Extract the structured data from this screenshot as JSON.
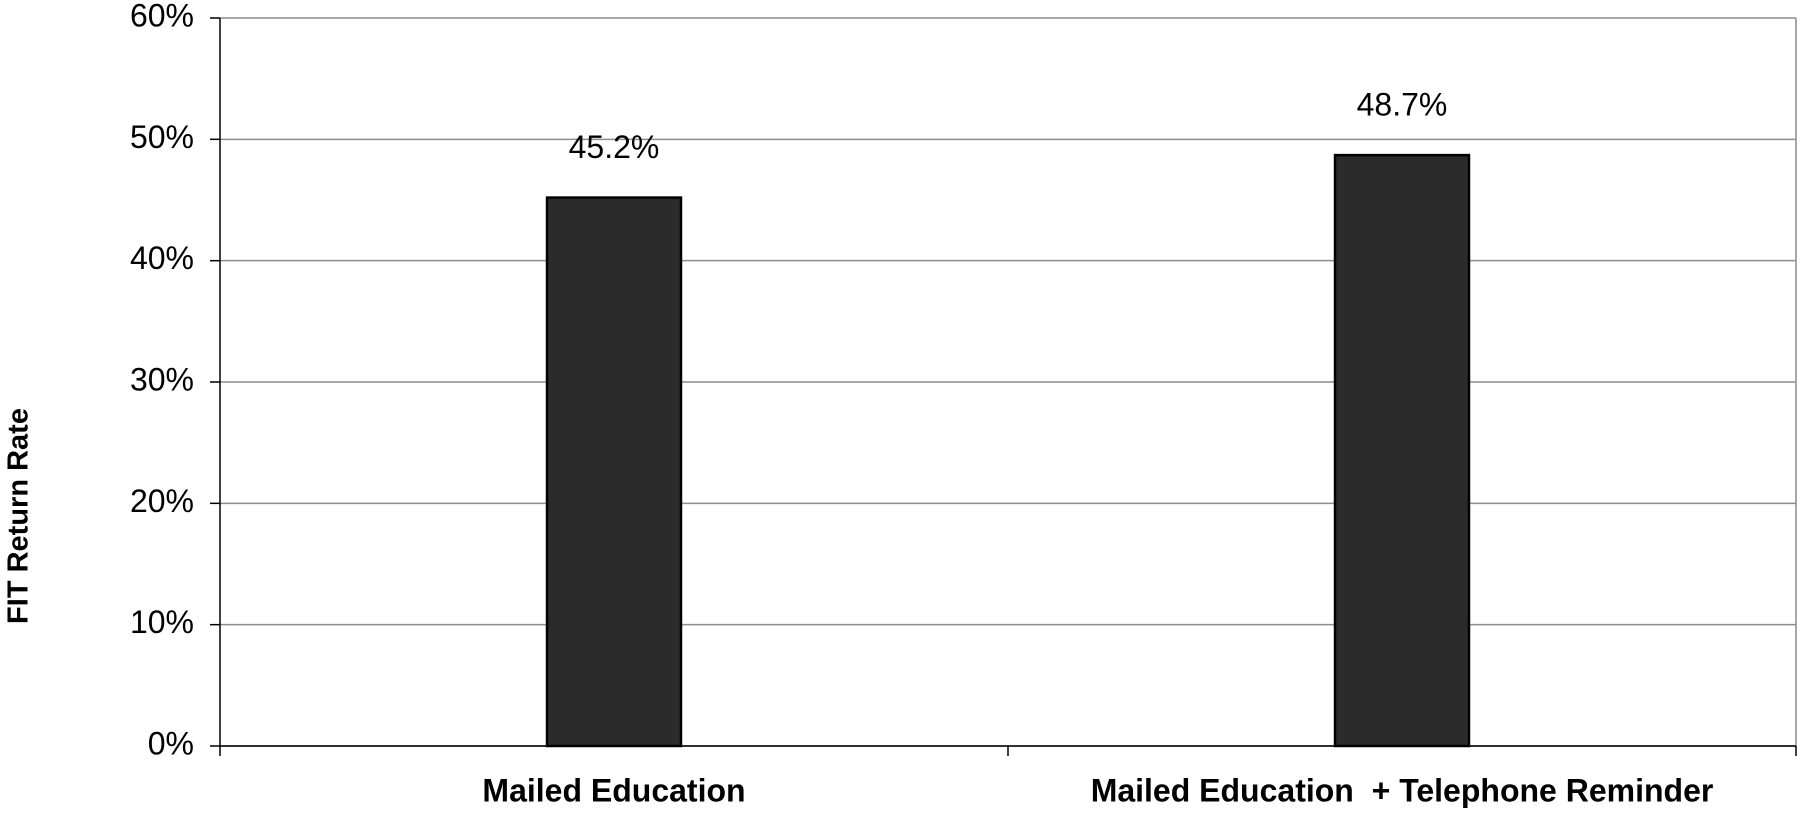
{
  "chart_data": {
    "type": "bar",
    "y_axis_label": "FIT Return Rate",
    "categories": [
      "Mailed Education",
      "Mailed Education  + Telephone Reminder"
    ],
    "values": [
      45.2,
      48.7
    ],
    "value_labels": [
      "45.2%",
      "48.7%"
    ],
    "color": "#2b2b2b",
    "ylim": [
      0,
      60
    ],
    "yticks": [
      {
        "value": 0,
        "label": "0%"
      },
      {
        "value": 10,
        "label": "10%"
      },
      {
        "value": 20,
        "label": "20%"
      },
      {
        "value": 30,
        "label": "30%"
      },
      {
        "value": 40,
        "label": "40%"
      },
      {
        "value": 50,
        "label": "50%"
      },
      {
        "value": 60,
        "label": "60%"
      }
    ],
    "grid": true
  }
}
